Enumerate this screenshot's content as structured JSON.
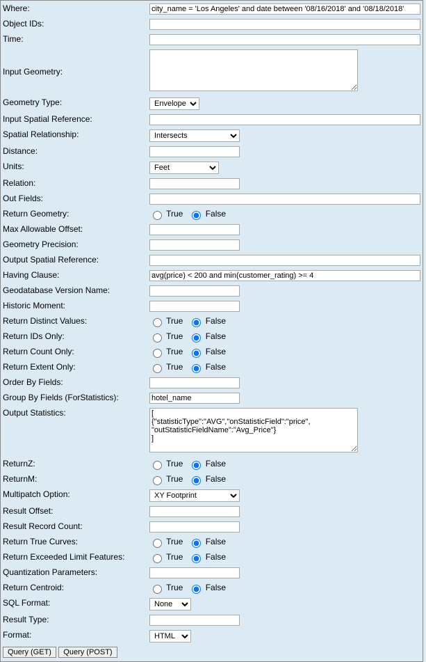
{
  "labels": {
    "where": "Where:",
    "objectIds": "Object IDs:",
    "time": "Time:",
    "inputGeometry": "Input Geometry:",
    "geometryType": "Geometry Type:",
    "inputSR": "Input Spatial Reference:",
    "spatialRel": "Spatial Relationship:",
    "distance": "Distance:",
    "units": "Units:",
    "relation": "Relation:",
    "outFields": "Out Fields:",
    "returnGeometry": "Return Geometry:",
    "maxOffset": "Max Allowable Offset:",
    "geomPrecision": "Geometry Precision:",
    "outputSR": "Output Spatial Reference:",
    "having": "Having Clause:",
    "gdbVersion": "Geodatabase Version Name:",
    "historicMoment": "Historic Moment:",
    "returnDistinct": "Return Distinct Values:",
    "returnIds": "Return IDs Only:",
    "returnCount": "Return Count Only:",
    "returnExtent": "Return Extent Only:",
    "orderBy": "Order By Fields:",
    "groupBy": "Group By Fields (ForStatistics):",
    "outStats": "Output Statistics:",
    "returnZ": "ReturnZ:",
    "returnM": "ReturnM:",
    "multipatch": "Multipatch Option:",
    "resultOffset": "Result Offset:",
    "resultRecordCount": "Result Record Count:",
    "returnTrueCurves": "Return True Curves:",
    "returnExceeded": "Return Exceeded Limit Features:",
    "quantization": "Quantization Parameters:",
    "returnCentroid": "Return Centroid:",
    "sqlFormat": "SQL Format:",
    "resultType": "Result Type:",
    "format": "Format:"
  },
  "values": {
    "where": "city_name = 'Los Angeles' and date between '08/16/2018' and '08/18/2018'",
    "objectIds": "",
    "time": "",
    "inputGeometry": "",
    "inputSR": "",
    "distance": "",
    "relation": "",
    "outFields": "",
    "maxOffset": "",
    "geomPrecision": "",
    "outputSR": "",
    "having": "avg(price) < 200 and min(customer_rating) >= 4",
    "gdbVersion": "",
    "historicMoment": "",
    "orderBy": "",
    "groupBy": "hotel_name",
    "outStats": "[\n{\"statisticType\":\"AVG\",\"onStatisticField\":\"price\",\n\"outStatisticFieldName\":\"Avg_Price\"}\n]",
    "resultOffset": "",
    "resultRecordCount": "",
    "quantization": "",
    "resultType": ""
  },
  "selects": {
    "geometryType": "Envelope",
    "spatialRel": "Intersects",
    "units": "Feet",
    "multipatch": "XY Footprint",
    "sqlFormat": "None",
    "format": "HTML"
  },
  "radioText": {
    "true": "True",
    "false": "False"
  },
  "radios": {
    "returnGeometry": "false",
    "returnDistinct": "false",
    "returnIds": "false",
    "returnCount": "false",
    "returnExtent": "false",
    "returnZ": "false",
    "returnM": "false",
    "returnTrueCurves": "false",
    "returnExceeded": "false",
    "returnCentroid": "false"
  },
  "widths": {
    "geometryType": 72,
    "spatialRel": 130,
    "units": 100,
    "multipatch": 130,
    "sqlFormat": 60,
    "format": 60
  },
  "buttons": {
    "get": "Query (GET)",
    "post": "Query (POST)"
  },
  "colors": {
    "pageBg": "#dceaf4",
    "border": "#8a8a8a",
    "inputBorder": "#a9a9a9",
    "inputBg": "#ffffff",
    "text": "#000000"
  }
}
